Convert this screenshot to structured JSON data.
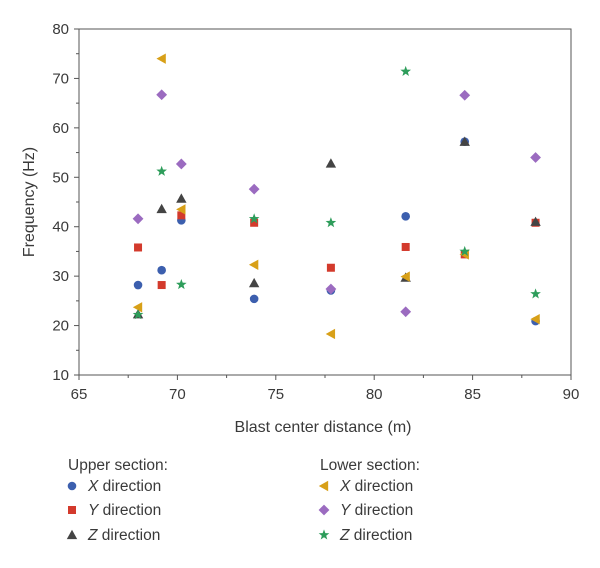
{
  "chart_data": {
    "type": "scatter",
    "xlabel": "Blast center distance (m)",
    "ylabel": "Frequency (Hz)",
    "xlim": [
      65,
      90
    ],
    "ylim": [
      10,
      80
    ],
    "x_ticks": [
      65,
      70,
      75,
      80,
      85,
      90
    ],
    "y_ticks": [
      10,
      20,
      30,
      40,
      50,
      60,
      70,
      80
    ],
    "grid": false,
    "legend_placement": "bottom",
    "legend": {
      "groups": [
        {
          "heading": "Upper section:",
          "entries": [
            {
              "axis": "X",
              "suffix": " direction",
              "series": 0
            },
            {
              "axis": "Y",
              "suffix": " direction",
              "series": 1
            },
            {
              "axis": "Z",
              "suffix": " direction",
              "series": 2
            }
          ]
        },
        {
          "heading": "Lower section:",
          "entries": [
            {
              "axis": "X",
              "suffix": " direction",
              "series": 3
            },
            {
              "axis": "Y",
              "suffix": " direction",
              "series": 4
            },
            {
              "axis": "Z",
              "suffix": " direction",
              "series": 5
            }
          ]
        }
      ]
    },
    "series": [
      {
        "marker": "circle",
        "color": "#3c5fae",
        "points": [
          [
            68,
            28.2
          ],
          [
            69.2,
            31.2
          ],
          [
            70.2,
            41.3
          ],
          [
            73.9,
            25.4
          ],
          [
            77.8,
            27.1
          ],
          [
            81.6,
            42.1
          ],
          [
            84.6,
            57.2
          ],
          [
            88.2,
            20.9
          ]
        ]
      },
      {
        "marker": "square",
        "color": "#d33a2c",
        "points": [
          [
            68,
            35.8
          ],
          [
            69.2,
            28.2
          ],
          [
            70.2,
            42.3
          ],
          [
            73.9,
            40.8
          ],
          [
            77.8,
            31.7
          ],
          [
            81.6,
            35.9
          ],
          [
            84.6,
            34.4
          ],
          [
            88.2,
            40.8
          ]
        ]
      },
      {
        "marker": "triangle-up",
        "color": "#444444",
        "points": [
          [
            68,
            22.3
          ],
          [
            69.2,
            43.6
          ],
          [
            70.2,
            45.7
          ],
          [
            73.9,
            28.6
          ],
          [
            77.8,
            52.8
          ],
          [
            81.6,
            29.7
          ],
          [
            84.6,
            57.2
          ],
          [
            88.2,
            41.0
          ]
        ]
      },
      {
        "marker": "triangle-left",
        "color": "#d8a018",
        "points": [
          [
            68,
            23.7
          ],
          [
            69.2,
            74.0
          ],
          [
            70.2,
            43.5
          ],
          [
            73.9,
            32.3
          ],
          [
            77.8,
            18.3
          ],
          [
            81.6,
            29.9
          ],
          [
            84.6,
            34.4
          ],
          [
            88.2,
            21.3
          ]
        ]
      },
      {
        "marker": "diamond",
        "color": "#9b6bc0",
        "points": [
          [
            68,
            41.6
          ],
          [
            69.2,
            66.7
          ],
          [
            70.2,
            52.7
          ],
          [
            73.9,
            47.6
          ],
          [
            77.8,
            27.4
          ],
          [
            81.6,
            22.8
          ],
          [
            84.6,
            66.6
          ],
          [
            88.2,
            54.0
          ]
        ]
      },
      {
        "marker": "star",
        "color": "#2e9d5b",
        "points": [
          [
            68,
            22.2
          ],
          [
            69.2,
            51.2
          ],
          [
            70.2,
            28.3
          ],
          [
            73.9,
            41.6
          ],
          [
            77.8,
            40.8
          ],
          [
            81.6,
            71.4
          ],
          [
            84.6,
            35.0
          ],
          [
            88.2,
            26.4
          ]
        ]
      }
    ]
  }
}
